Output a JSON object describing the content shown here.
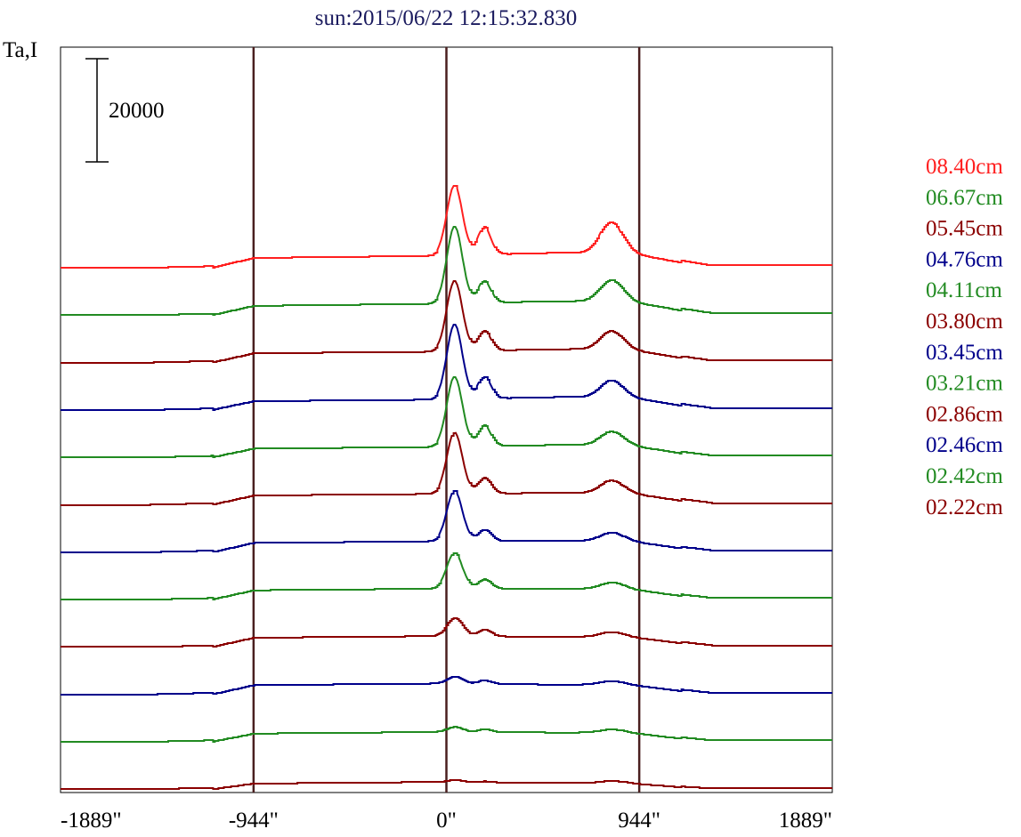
{
  "chart_data": {
    "type": "line",
    "title": "sun:2015/06/22 12:15:32.830",
    "ylabel": "Ta,I",
    "scale_bar_label": "20000",
    "scale_bar_value": 20000,
    "x_ticks": [
      "-1889\"",
      "-944\"",
      "0\"",
      "944\"",
      "1889\""
    ],
    "x_tick_values": [
      -1889,
      -944,
      0,
      944,
      1889
    ],
    "xlim": [
      -1889,
      1889
    ],
    "vertical_lines": [
      -944,
      0,
      944
    ],
    "legend_position": "right",
    "series": [
      {
        "name": "08.40cm",
        "color": "#ff2020",
        "baseline": 0,
        "peaks": {
          "step_left": 1900,
          "flat": 2300,
          "central": 15900,
          "second": 7600,
          "east": 8800,
          "valley": 2900,
          "tail_right": 2400
        }
      },
      {
        "name": "06.67cm",
        "color": "#228b22",
        "baseline": 1,
        "peaks": {
          "step_left": 1800,
          "flat": 2200,
          "central": 17100,
          "second": 6400,
          "east": 6800,
          "valley": 2700,
          "tail_right": 2200
        }
      },
      {
        "name": "05.45cm",
        "color": "#8b0000",
        "baseline": 2,
        "peaks": {
          "step_left": 1800,
          "flat": 2100,
          "central": 15800,
          "second": 5900,
          "east": 6100,
          "valley": 2600,
          "tail_right": 2100
        }
      },
      {
        "name": "04.76cm",
        "color": "#00008b",
        "baseline": 3,
        "peaks": {
          "step_left": 1700,
          "flat": 2000,
          "central": 16500,
          "second": 6200,
          "east": 5700,
          "valley": 2500,
          "tail_right": 2000
        }
      },
      {
        "name": "04.11cm",
        "color": "#228b22",
        "baseline": 4,
        "peaks": {
          "step_left": 1700,
          "flat": 2000,
          "central": 15600,
          "second": 6000,
          "east": 5000,
          "valley": 2400,
          "tail_right": 1900
        }
      },
      {
        "name": "03.80cm",
        "color": "#8b0000",
        "baseline": 5,
        "peaks": {
          "step_left": 1800,
          "flat": 2100,
          "central": 14000,
          "second": 5100,
          "east": 4700,
          "valley": 2300,
          "tail_right": 1900
        }
      },
      {
        "name": "03.45cm",
        "color": "#00008b",
        "baseline": 6,
        "peaks": {
          "step_left": 1800,
          "flat": 2100,
          "central": 11900,
          "second": 4300,
          "east": 3800,
          "valley": 2200,
          "tail_right": 1800
        }
      },
      {
        "name": "03.21cm",
        "color": "#228b22",
        "baseline": 7,
        "peaks": {
          "step_left": 1800,
          "flat": 2100,
          "central": 9100,
          "second": 3900,
          "east": 3300,
          "valley": 2100,
          "tail_right": 1700
        }
      },
      {
        "name": "02.86cm",
        "color": "#8b0000",
        "baseline": 8,
        "peaks": {
          "step_left": 1800,
          "flat": 2100,
          "central": 5700,
          "second": 3400,
          "east": 2900,
          "valley": 2000,
          "tail_right": 1700
        }
      },
      {
        "name": "02.46cm",
        "color": "#00008b",
        "baseline": 9,
        "peaks": {
          "step_left": 1800,
          "flat": 2100,
          "central": 3500,
          "second": 2800,
          "east": 2600,
          "valley": 1900,
          "tail_right": 1600
        }
      },
      {
        "name": "02.42cm",
        "color": "#228b22",
        "baseline": 10,
        "peaks": {
          "step_left": 1600,
          "flat": 1900,
          "central": 2900,
          "second": 2500,
          "east": 2400,
          "valley": 1800,
          "tail_right": 1500
        }
      },
      {
        "name": "02.22cm",
        "color": "#8b0000",
        "baseline": 11,
        "peaks": {
          "step_left": 1100,
          "flat": 1400,
          "central": 1800,
          "second": 1600,
          "east": 1600,
          "valley": 1200,
          "tail_right": 900
        }
      }
    ]
  }
}
